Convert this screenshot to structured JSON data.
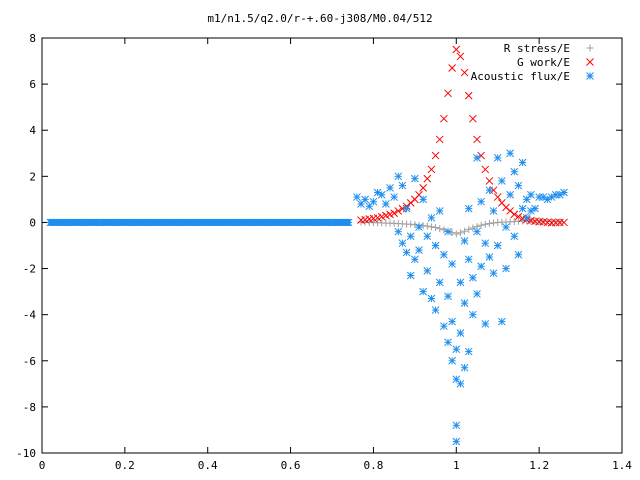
{
  "chart_data": {
    "type": "scatter",
    "title": "m1/n1.5/q2.0/r-+.60-j308/M0.04/512",
    "xlabel": "",
    "ylabel": "",
    "xlim": [
      0,
      1.4
    ],
    "ylim": [
      -10,
      8
    ],
    "xticks": [
      "0",
      "0.2",
      "0.4",
      "0.6",
      "0.8",
      "1",
      "1.2",
      "1.4"
    ],
    "yticks": [
      "-10",
      "-8",
      "-6",
      "-4",
      "-2",
      "0",
      "2",
      "4",
      "6",
      "8"
    ],
    "grid": false,
    "legend_position": "top-right",
    "series": [
      {
        "name": "R stress/E",
        "marker": "plus",
        "color": "#a0a0a0",
        "points": [
          [
            0.77,
            0.02
          ],
          [
            0.78,
            0.01
          ],
          [
            0.79,
            0.0
          ],
          [
            0.8,
            -0.01
          ],
          [
            0.81,
            -0.01
          ],
          [
            0.82,
            -0.02
          ],
          [
            0.83,
            -0.03
          ],
          [
            0.84,
            -0.03
          ],
          [
            0.85,
            -0.04
          ],
          [
            0.86,
            -0.05
          ],
          [
            0.87,
            -0.06
          ],
          [
            0.88,
            -0.07
          ],
          [
            0.89,
            -0.08
          ],
          [
            0.9,
            -0.1
          ],
          [
            0.91,
            -0.12
          ],
          [
            0.92,
            -0.14
          ],
          [
            0.93,
            -0.16
          ],
          [
            0.94,
            -0.19
          ],
          [
            0.95,
            -0.22
          ],
          [
            0.96,
            -0.27
          ],
          [
            0.97,
            -0.32
          ],
          [
            0.98,
            -0.38
          ],
          [
            0.99,
            -0.44
          ],
          [
            1.0,
            -0.5
          ],
          [
            1.01,
            -0.45
          ],
          [
            1.02,
            -0.38
          ],
          [
            1.03,
            -0.3
          ],
          [
            1.04,
            -0.24
          ],
          [
            1.05,
            -0.18
          ],
          [
            1.06,
            -0.12
          ],
          [
            1.07,
            -0.08
          ],
          [
            1.08,
            -0.05
          ],
          [
            1.09,
            -0.02
          ],
          [
            1.1,
            0.0
          ],
          [
            1.11,
            0.01
          ],
          [
            1.12,
            0.02
          ],
          [
            1.13,
            0.03
          ],
          [
            1.14,
            0.04
          ],
          [
            1.15,
            0.05
          ],
          [
            1.16,
            0.06
          ],
          [
            1.17,
            0.06
          ],
          [
            1.18,
            0.06
          ],
          [
            1.19,
            0.06
          ],
          [
            1.2,
            0.06
          ],
          [
            1.21,
            0.05
          ],
          [
            1.22,
            0.05
          ],
          [
            1.23,
            0.04
          ],
          [
            1.24,
            0.03
          ],
          [
            1.25,
            0.02
          ]
        ]
      },
      {
        "name": "G work/E",
        "marker": "cross",
        "color": "#ff0000",
        "points": [
          [
            0.77,
            0.1
          ],
          [
            0.78,
            0.12
          ],
          [
            0.79,
            0.15
          ],
          [
            0.8,
            0.18
          ],
          [
            0.81,
            0.2
          ],
          [
            0.82,
            0.25
          ],
          [
            0.83,
            0.3
          ],
          [
            0.84,
            0.35
          ],
          [
            0.85,
            0.4
          ],
          [
            0.86,
            0.5
          ],
          [
            0.87,
            0.6
          ],
          [
            0.88,
            0.7
          ],
          [
            0.89,
            0.85
          ],
          [
            0.9,
            1.0
          ],
          [
            0.91,
            1.2
          ],
          [
            0.92,
            1.5
          ],
          [
            0.93,
            1.9
          ],
          [
            0.94,
            2.3
          ],
          [
            0.95,
            2.9
          ],
          [
            0.96,
            3.6
          ],
          [
            0.97,
            4.5
          ],
          [
            0.98,
            5.6
          ],
          [
            0.99,
            6.7
          ],
          [
            1.0,
            7.5
          ],
          [
            1.01,
            7.2
          ],
          [
            1.02,
            6.5
          ],
          [
            1.03,
            5.5
          ],
          [
            1.04,
            4.5
          ],
          [
            1.05,
            3.6
          ],
          [
            1.06,
            2.9
          ],
          [
            1.07,
            2.3
          ],
          [
            1.08,
            1.8
          ],
          [
            1.09,
            1.4
          ],
          [
            1.1,
            1.1
          ],
          [
            1.11,
            0.85
          ],
          [
            1.12,
            0.65
          ],
          [
            1.13,
            0.5
          ],
          [
            1.14,
            0.35
          ],
          [
            1.15,
            0.25
          ],
          [
            1.16,
            0.18
          ],
          [
            1.17,
            0.12
          ],
          [
            1.18,
            0.08
          ],
          [
            1.19,
            0.05
          ],
          [
            1.2,
            0.03
          ],
          [
            1.21,
            0.02
          ],
          [
            1.22,
            0.0
          ],
          [
            1.23,
            -0.02
          ],
          [
            1.24,
            -0.01
          ],
          [
            1.25,
            0.0
          ],
          [
            1.26,
            0.0
          ]
        ]
      },
      {
        "name": "Acoustic flux/E",
        "marker": "star",
        "color": "#1f8fef",
        "points": [
          [
            0.02,
            0.0
          ],
          [
            0.06,
            0.0
          ],
          [
            0.1,
            0.0
          ],
          [
            0.14,
            0.0
          ],
          [
            0.18,
            0.0
          ],
          [
            0.22,
            0.0
          ],
          [
            0.26,
            0.0
          ],
          [
            0.3,
            0.0
          ],
          [
            0.34,
            0.0
          ],
          [
            0.38,
            0.0
          ],
          [
            0.42,
            0.0
          ],
          [
            0.46,
            0.0
          ],
          [
            0.5,
            0.0
          ],
          [
            0.54,
            0.0
          ],
          [
            0.58,
            0.0
          ],
          [
            0.62,
            0.0
          ],
          [
            0.66,
            0.0
          ],
          [
            0.7,
            0.0
          ],
          [
            0.74,
            0.0
          ],
          [
            0.76,
            1.1
          ],
          [
            0.77,
            0.8
          ],
          [
            0.78,
            1.0
          ],
          [
            0.79,
            0.7
          ],
          [
            0.8,
            0.9
          ],
          [
            0.81,
            1.3
          ],
          [
            0.82,
            1.2
          ],
          [
            0.83,
            0.8
          ],
          [
            0.84,
            1.5
          ],
          [
            0.85,
            1.1
          ],
          [
            0.86,
            2.0
          ],
          [
            0.87,
            1.6
          ],
          [
            0.88,
            0.6
          ],
          [
            0.86,
            -0.4
          ],
          [
            0.87,
            -0.9
          ],
          [
            0.88,
            -1.3
          ],
          [
            0.89,
            -0.6
          ],
          [
            0.89,
            -2.3
          ],
          [
            0.9,
            1.9
          ],
          [
            0.9,
            -1.6
          ],
          [
            0.91,
            -0.2
          ],
          [
            0.91,
            -1.2
          ],
          [
            0.92,
            -3.0
          ],
          [
            0.92,
            1.0
          ],
          [
            0.93,
            -0.6
          ],
          [
            0.93,
            -2.1
          ],
          [
            0.94,
            -3.3
          ],
          [
            0.94,
            0.2
          ],
          [
            0.95,
            -1.0
          ],
          [
            0.95,
            -3.8
          ],
          [
            0.96,
            -2.6
          ],
          [
            0.96,
            0.5
          ],
          [
            0.97,
            -4.5
          ],
          [
            0.97,
            -1.4
          ],
          [
            0.98,
            -5.2
          ],
          [
            0.98,
            -3.2
          ],
          [
            0.98,
            -0.4
          ],
          [
            0.99,
            -6.0
          ],
          [
            0.99,
            -4.3
          ],
          [
            0.99,
            -1.8
          ],
          [
            1.0,
            -9.5
          ],
          [
            1.0,
            -8.8
          ],
          [
            1.0,
            -6.8
          ],
          [
            1.0,
            -5.5
          ],
          [
            1.01,
            -7.0
          ],
          [
            1.01,
            -4.8
          ],
          [
            1.01,
            -2.6
          ],
          [
            1.02,
            -6.3
          ],
          [
            1.02,
            -3.5
          ],
          [
            1.02,
            -0.8
          ],
          [
            1.03,
            -5.6
          ],
          [
            1.03,
            -1.6
          ],
          [
            1.03,
            0.6
          ],
          [
            1.04,
            -4.0
          ],
          [
            1.04,
            -2.4
          ],
          [
            1.05,
            -3.1
          ],
          [
            1.05,
            -0.4
          ],
          [
            1.05,
            2.8
          ],
          [
            1.06,
            -1.9
          ],
          [
            1.06,
            0.9
          ],
          [
            1.07,
            -4.4
          ],
          [
            1.07,
            -0.9
          ],
          [
            1.08,
            1.4
          ],
          [
            1.08,
            -1.5
          ],
          [
            1.09,
            -2.2
          ],
          [
            1.09,
            0.5
          ],
          [
            1.1,
            2.8
          ],
          [
            1.1,
            -1.0
          ],
          [
            1.11,
            -4.3
          ],
          [
            1.11,
            1.8
          ],
          [
            1.12,
            -0.2
          ],
          [
            1.12,
            -2.0
          ],
          [
            1.13,
            1.2
          ],
          [
            1.13,
            3.0
          ],
          [
            1.14,
            2.2
          ],
          [
            1.14,
            -0.6
          ],
          [
            1.15,
            -1.4
          ],
          [
            1.15,
            1.6
          ],
          [
            1.16,
            2.6
          ],
          [
            1.16,
            0.6
          ],
          [
            1.17,
            1.0
          ],
          [
            1.17,
            0.2
          ],
          [
            1.18,
            1.2
          ],
          [
            1.18,
            0.5
          ],
          [
            1.19,
            0.6
          ],
          [
            1.2,
            1.1
          ],
          [
            1.21,
            1.1
          ],
          [
            1.22,
            1.0
          ],
          [
            1.23,
            1.1
          ],
          [
            1.24,
            1.2
          ],
          [
            1.25,
            1.2
          ],
          [
            1.26,
            1.3
          ]
        ]
      }
    ]
  }
}
